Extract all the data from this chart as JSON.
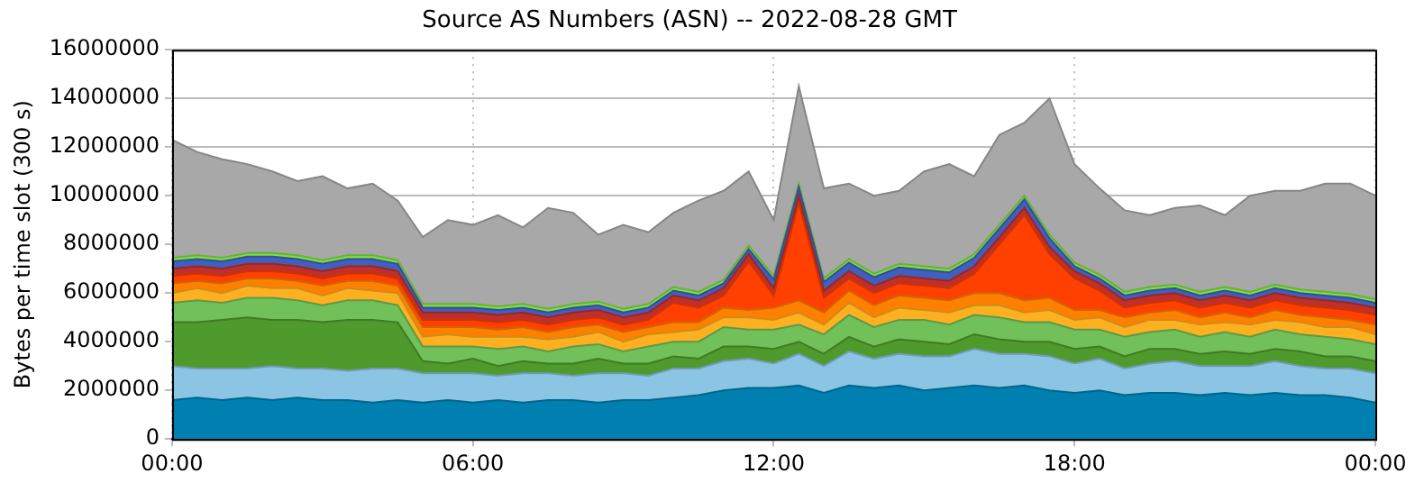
{
  "chart_data": {
    "type": "area",
    "stacked": true,
    "title": "Source AS Numbers (ASN) -- 2022-08-28 GMT",
    "ylabel": "Bytes per time slot (300 s)",
    "x": [
      0,
      0.5,
      1,
      1.5,
      2,
      2.5,
      3,
      3.5,
      4,
      4.5,
      5,
      5.5,
      6,
      6.5,
      7,
      7.5,
      8,
      8.5,
      9,
      9.5,
      10,
      10.5,
      11,
      11.5,
      12,
      12.5,
      13,
      13.5,
      14,
      14.5,
      15,
      15.5,
      16,
      16.5,
      17,
      17.5,
      18,
      18.5,
      19,
      19.5,
      20,
      20.5,
      21,
      21.5,
      22,
      22.5,
      23,
      23.5,
      24
    ],
    "xlim": [
      0,
      24
    ],
    "xticks": [
      {
        "value": 0,
        "label": "00:00"
      },
      {
        "value": 6,
        "label": "06:00"
      },
      {
        "value": 12,
        "label": "12:00"
      },
      {
        "value": 18,
        "label": "18:00"
      },
      {
        "value": 24,
        "label": "00:00"
      }
    ],
    "ylim": [
      0,
      16000000
    ],
    "yticks": [
      0,
      2000000,
      4000000,
      6000000,
      8000000,
      10000000,
      12000000,
      14000000,
      16000000
    ],
    "grid": true,
    "legend": false,
    "series": [
      {
        "color": "#0080b0",
        "values": [
          1600000,
          1700000,
          1600000,
          1700000,
          1600000,
          1700000,
          1600000,
          1600000,
          1500000,
          1600000,
          1500000,
          1600000,
          1500000,
          1600000,
          1500000,
          1600000,
          1600000,
          1500000,
          1600000,
          1600000,
          1700000,
          1800000,
          2000000,
          2100000,
          2100000,
          2200000,
          1900000,
          2200000,
          2100000,
          2200000,
          2000000,
          2100000,
          2200000,
          2100000,
          2200000,
          2000000,
          1900000,
          2000000,
          1800000,
          1900000,
          1900000,
          1800000,
          1900000,
          1800000,
          1900000,
          1800000,
          1800000,
          1700000,
          1500000
        ]
      },
      {
        "color": "#8cc4e4",
        "values": [
          1400000,
          1200000,
          1300000,
          1200000,
          1400000,
          1200000,
          1300000,
          1200000,
          1400000,
          1300000,
          1200000,
          1100000,
          1200000,
          1000000,
          1200000,
          1100000,
          1000000,
          1200000,
          1100000,
          1000000,
          1200000,
          1100000,
          1200000,
          1200000,
          1000000,
          1300000,
          1100000,
          1400000,
          1200000,
          1300000,
          1400000,
          1300000,
          1500000,
          1400000,
          1300000,
          1400000,
          1200000,
          1300000,
          1100000,
          1200000,
          1300000,
          1200000,
          1100000,
          1200000,
          1300000,
          1200000,
          1100000,
          1200000,
          1200000
        ]
      },
      {
        "color": "#4f9a2c",
        "values": [
          1800000,
          1900000,
          2000000,
          2100000,
          1900000,
          2000000,
          1900000,
          2100000,
          2000000,
          1900000,
          500000,
          400000,
          600000,
          400000,
          500000,
          400000,
          500000,
          600000,
          400000,
          500000,
          500000,
          400000,
          600000,
          500000,
          600000,
          500000,
          500000,
          600000,
          500000,
          600000,
          600000,
          500000,
          600000,
          600000,
          500000,
          600000,
          600000,
          500000,
          500000,
          600000,
          500000,
          500000,
          600000,
          500000,
          500000,
          600000,
          500000,
          500000,
          500000
        ]
      },
      {
        "color": "#72c05a",
        "values": [
          800000,
          900000,
          700000,
          800000,
          900000,
          800000,
          700000,
          800000,
          800000,
          700000,
          600000,
          700000,
          500000,
          700000,
          600000,
          500000,
          700000,
          600000,
          500000,
          700000,
          600000,
          700000,
          800000,
          700000,
          800000,
          700000,
          800000,
          900000,
          800000,
          800000,
          900000,
          800000,
          800000,
          900000,
          800000,
          800000,
          800000,
          700000,
          800000,
          700000,
          800000,
          700000,
          800000,
          700000,
          800000,
          700000,
          800000,
          700000,
          700000
        ]
      },
      {
        "color": "#ffb020",
        "values": [
          400000,
          500000,
          400000,
          500000,
          400000,
          500000,
          400000,
          500000,
          400000,
          500000,
          400000,
          500000,
          400000,
          500000,
          400000,
          500000,
          400000,
          500000,
          400000,
          500000,
          400000,
          500000,
          400000,
          500000,
          400000,
          500000,
          400000,
          500000,
          400000,
          500000,
          400000,
          500000,
          400000,
          500000,
          400000,
          500000,
          400000,
          500000,
          400000,
          500000,
          400000,
          500000,
          400000,
          500000,
          400000,
          500000,
          400000,
          500000,
          400000
        ]
      },
      {
        "color": "#ff7f00",
        "values": [
          400000,
          300000,
          400000,
          300000,
          400000,
          300000,
          400000,
          300000,
          400000,
          300000,
          400000,
          300000,
          400000,
          300000,
          400000,
          300000,
          400000,
          300000,
          400000,
          300000,
          400000,
          300000,
          400000,
          300000,
          500000,
          500000,
          500000,
          500000,
          500000,
          500000,
          500000,
          500000,
          500000,
          500000,
          500000,
          500000,
          400000,
          300000,
          400000,
          300000,
          400000,
          300000,
          400000,
          300000,
          400000,
          300000,
          400000,
          300000,
          400000
        ]
      },
      {
        "color": "#ff4000",
        "values": [
          300000,
          300000,
          300000,
          300000,
          300000,
          300000,
          300000,
          300000,
          300000,
          300000,
          300000,
          300000,
          300000,
          300000,
          300000,
          300000,
          300000,
          300000,
          300000,
          300000,
          800000,
          600000,
          500000,
          2000000,
          500000,
          4000000,
          600000,
          500000,
          500000,
          500000,
          500000,
          500000,
          800000,
          2000000,
          3500000,
          1800000,
          1300000,
          800000,
          400000,
          400000,
          400000,
          400000,
          400000,
          400000,
          400000,
          400000,
          400000,
          400000,
          400000
        ]
      },
      {
        "color": "#c0302a",
        "values": [
          300000,
          300000,
          300000,
          300000,
          300000,
          300000,
          300000,
          300000,
          300000,
          300000,
          300000,
          300000,
          300000,
          300000,
          300000,
          300000,
          300000,
          300000,
          300000,
          300000,
          300000,
          300000,
          300000,
          300000,
          300000,
          300000,
          300000,
          300000,
          300000,
          300000,
          300000,
          300000,
          300000,
          300000,
          300000,
          300000,
          300000,
          300000,
          300000,
          300000,
          300000,
          300000,
          300000,
          300000,
          300000,
          300000,
          300000,
          300000,
          300000
        ]
      },
      {
        "color": "#4060c0",
        "values": [
          300000,
          300000,
          300000,
          300000,
          300000,
          300000,
          300000,
          300000,
          300000,
          300000,
          200000,
          200000,
          200000,
          200000,
          200000,
          200000,
          200000,
          200000,
          200000,
          200000,
          200000,
          200000,
          200000,
          200000,
          350000,
          350000,
          350000,
          350000,
          350000,
          350000,
          350000,
          350000,
          350000,
          350000,
          350000,
          350000,
          200000,
          200000,
          200000,
          200000,
          200000,
          200000,
          200000,
          200000,
          200000,
          200000,
          200000,
          200000,
          200000
        ]
      },
      {
        "color": "#80e040",
        "values": [
          150000,
          150000,
          150000,
          150000,
          150000,
          150000,
          150000,
          150000,
          150000,
          150000,
          150000,
          150000,
          150000,
          150000,
          150000,
          150000,
          150000,
          150000,
          150000,
          150000,
          150000,
          150000,
          150000,
          150000,
          150000,
          150000,
          150000,
          150000,
          150000,
          150000,
          150000,
          150000,
          150000,
          150000,
          150000,
          150000,
          150000,
          150000,
          150000,
          150000,
          150000,
          150000,
          150000,
          150000,
          150000,
          150000,
          150000,
          150000,
          150000
        ]
      },
      {
        "color": "#a8a8a8",
        "values": [
          4850000,
          4250000,
          4050000,
          3650000,
          3350000,
          3050000,
          3450000,
          2750000,
          2950000,
          2450000,
          2750000,
          3450000,
          3250000,
          3750000,
          3150000,
          4150000,
          3750000,
          2750000,
          3450000,
          2950000,
          3050000,
          3750000,
          3650000,
          3050000,
          2300000,
          4000000,
          3700000,
          3100000,
          3200000,
          3000000,
          3900000,
          4300000,
          3200000,
          3700000,
          3000000,
          5600000,
          4050000,
          3550000,
          3350000,
          2950000,
          3150000,
          3550000,
          2950000,
          3950000,
          3850000,
          4050000,
          4450000,
          4550000,
          4250000
        ]
      }
    ]
  }
}
